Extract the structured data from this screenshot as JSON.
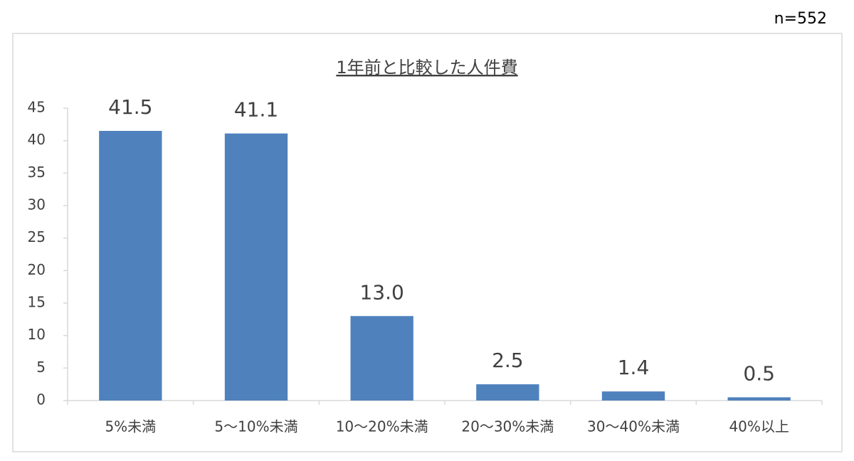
{
  "chart_data": {
    "type": "bar",
    "title": "1年前と比較した人件費",
    "note": "n=552",
    "categories": [
      "5%未満",
      "5〜10%未満",
      "10〜20%未満",
      "20〜30%未満",
      "30〜40%未満",
      "40%以上"
    ],
    "values": [
      41.5,
      41.1,
      13.0,
      2.5,
      1.4,
      0.5
    ],
    "value_labels": [
      "41.5",
      "41.1",
      "13.0",
      "2.5",
      "1.4",
      "0.5"
    ],
    "color": "#4f81bd",
    "ylim": [
      0,
      45
    ],
    "yticks": [
      0,
      5,
      10,
      15,
      20,
      25,
      30,
      35,
      40,
      45
    ],
    "grid": false
  }
}
